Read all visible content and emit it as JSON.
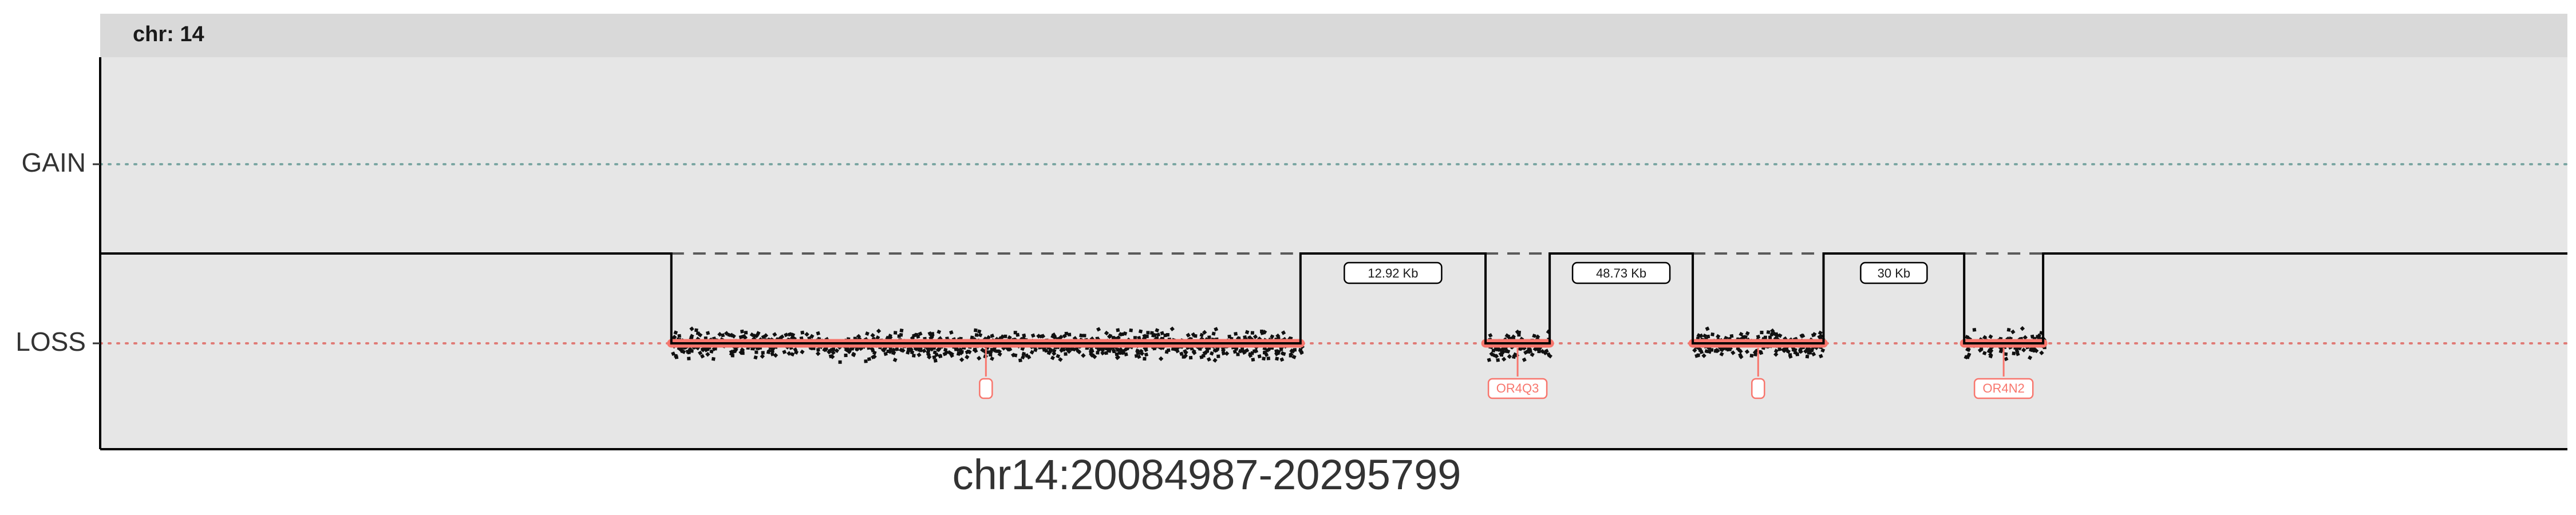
{
  "chart_data": {
    "type": "scatter",
    "facet_label": "chr: 14",
    "xlabel": "chr14:20084987-20295799",
    "ylabel": "",
    "y_categories": [
      "GAIN",
      "LOSS"
    ],
    "grid": false,
    "colors": {
      "gain_line": "#7aa6a2",
      "loss_line": "#e07b76",
      "segment": "#f8766d",
      "points": "#111111",
      "panel": "#e6e6e6",
      "strip": "#d9d9d9",
      "step": "#000000"
    },
    "loss_segments": [
      {
        "start": 0.2315,
        "end": 0.4865,
        "gene": ""
      },
      {
        "start": 0.5615,
        "end": 0.5875,
        "gene": "OR4Q3"
      },
      {
        "start": 0.6455,
        "end": 0.6985,
        "gene": ""
      },
      {
        "start": 0.7555,
        "end": 0.7875,
        "gene": "OR4N2"
      }
    ],
    "gaps": [
      {
        "label": "12.92 Kb"
      },
      {
        "label": "48.73 Kb"
      },
      {
        "label": "30 Kb"
      }
    ]
  }
}
